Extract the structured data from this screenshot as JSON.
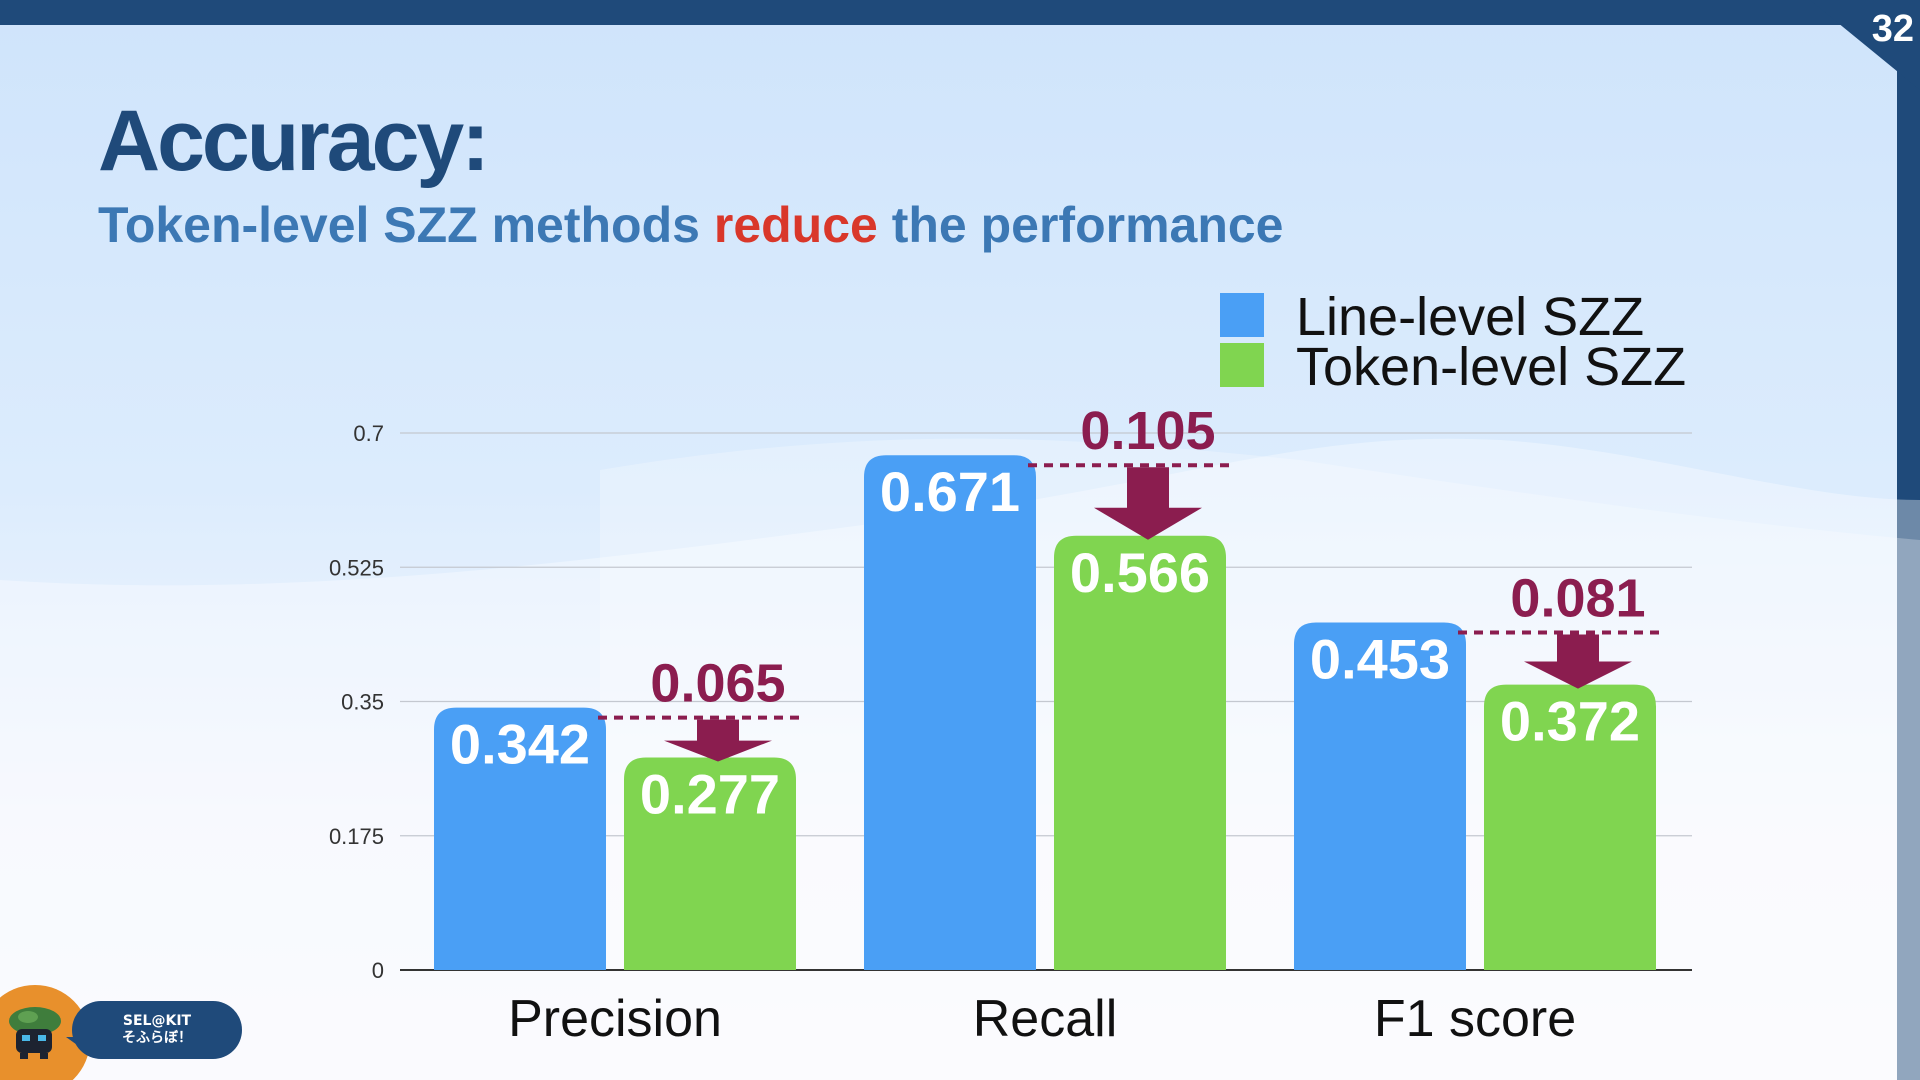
{
  "page_number": "32",
  "title": "Accuracy:",
  "subtitle": {
    "part1": "Token-level SZZ methods ",
    "highlight": "reduce",
    "part2": " the performance"
  },
  "colors": {
    "dark_blue": "#1f4a7a",
    "subtitle_blue": "#3c78b4",
    "highlight_red": "#d9372a",
    "line_level": "#4a9ff5",
    "token_level": "#80d550",
    "drop": "#8b1d4f"
  },
  "legend": [
    {
      "label": "Line-level SZZ",
      "color": "#4a9ff5"
    },
    {
      "label": "Token-level SZZ",
      "color": "#80d550"
    }
  ],
  "badge": {
    "line1": "SEL@KIT",
    "line2": "そふらぼ！",
    "icon": "bird-mascot-icon"
  },
  "chart_data": {
    "type": "bar",
    "categories": [
      "Precision",
      "Recall",
      "F1 score"
    ],
    "series": [
      {
        "name": "Line-level SZZ",
        "values": [
          0.342,
          0.671,
          0.453
        ],
        "labels": [
          "0.342",
          "0.671",
          "0.453"
        ]
      },
      {
        "name": "Token-level SZZ",
        "values": [
          0.277,
          0.566,
          0.372
        ],
        "labels": [
          "0.277",
          "0.566",
          "0.372"
        ]
      }
    ],
    "differences": [
      "0.065",
      "0.105",
      "0.081"
    ],
    "yticks": [
      "0",
      "0.175",
      "0.35",
      "0.525",
      "0.7"
    ],
    "ylim": [
      0,
      0.7
    ],
    "grid": true,
    "legend_position": "top-right"
  }
}
